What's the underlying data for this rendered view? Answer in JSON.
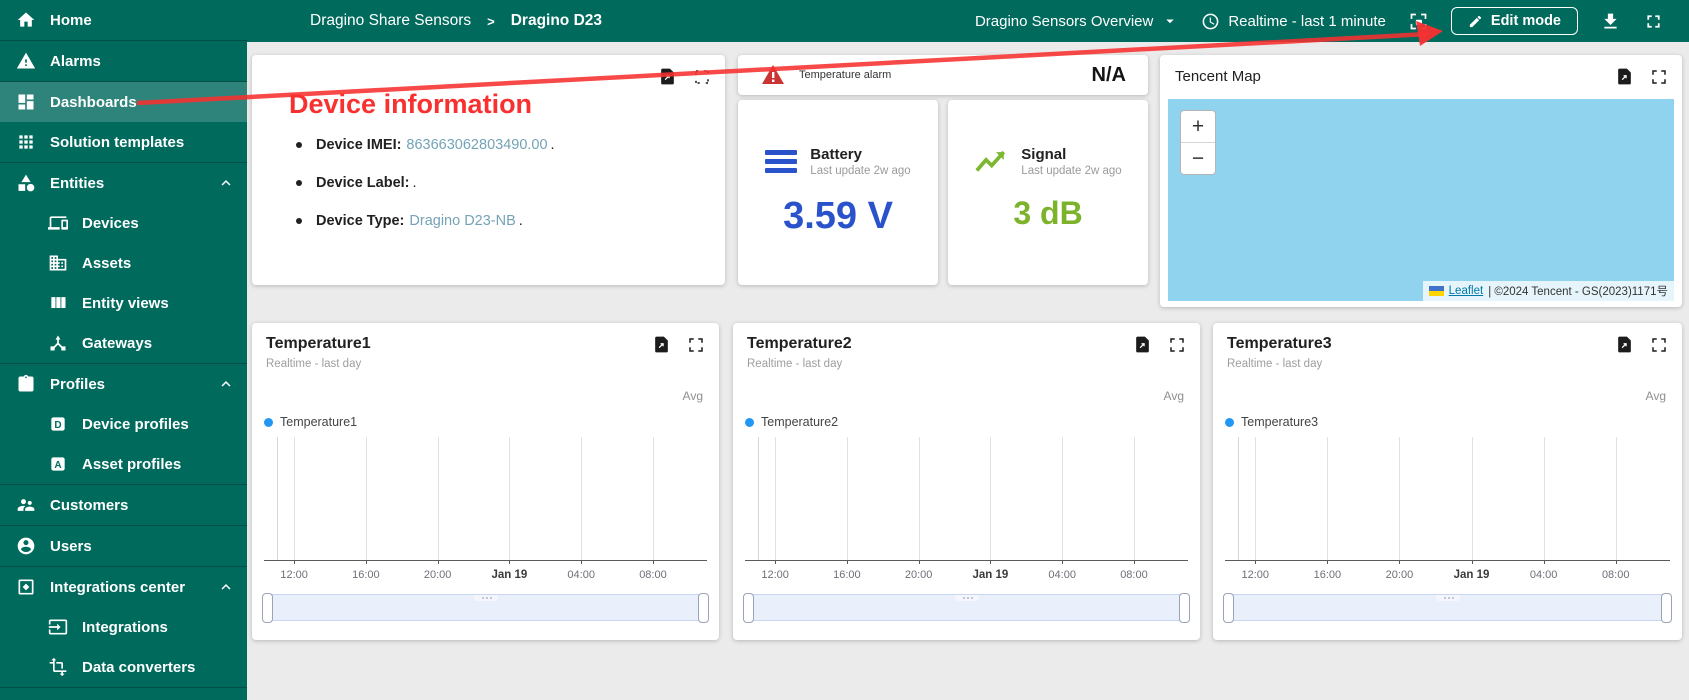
{
  "topbar": {
    "breadcrumb": {
      "parent": "Dragino Share Sensors",
      "separator": ">",
      "current": "Dragino D23"
    },
    "dashboard_select": "Dragino Sensors Overview",
    "timewindow": "Realtime - last 1 minute",
    "edit_button": "Edit mode"
  },
  "sidebar": {
    "items": [
      {
        "label": "Home",
        "icon": "home"
      },
      {
        "divider": true
      },
      {
        "label": "Alarms",
        "icon": "warning"
      },
      {
        "divider": true
      },
      {
        "label": "Dashboards",
        "icon": "dashboard",
        "selected": true
      },
      {
        "label": "Solution templates",
        "icon": "apps"
      },
      {
        "divider": true
      },
      {
        "label": "Entities",
        "icon": "category",
        "chevron": "up"
      },
      {
        "label": "Devices",
        "icon": "devices",
        "sub": true
      },
      {
        "label": "Assets",
        "icon": "domain",
        "sub": true
      },
      {
        "label": "Entity views",
        "icon": "columns",
        "sub": true
      },
      {
        "label": "Gateways",
        "icon": "hub",
        "sub": true
      },
      {
        "divider": true
      },
      {
        "label": "Profiles",
        "icon": "assignment",
        "chevron": "up"
      },
      {
        "label": "Device profiles",
        "icon": "letter-d",
        "sub": true
      },
      {
        "label": "Asset profiles",
        "icon": "letter-a",
        "sub": true
      },
      {
        "divider": true
      },
      {
        "label": "Customers",
        "icon": "people"
      },
      {
        "divider": true
      },
      {
        "label": "Users",
        "icon": "person"
      },
      {
        "divider": true
      },
      {
        "label": "Integrations center",
        "icon": "integration",
        "chevron": "up"
      },
      {
        "label": "Integrations",
        "icon": "input",
        "sub": true
      },
      {
        "label": "Data converters",
        "icon": "transform",
        "sub": true
      },
      {
        "divider": true
      }
    ]
  },
  "annotation": {
    "text": "Device information",
    "color": "#F83030"
  },
  "widgets": {
    "device_info": {
      "rows": [
        {
          "label": "Device IMEI:",
          "value": "863663062803490.00",
          "suffix": "."
        },
        {
          "label": "Device Label:",
          "value": "",
          "suffix": "."
        },
        {
          "label": "Device Type:",
          "value": "Dragino D23-NB",
          "suffix": "."
        }
      ]
    },
    "alarm": {
      "title": "Temperature alarm",
      "value": "N/A"
    },
    "battery": {
      "title": "Battery",
      "subtitle": "Last update 2w ago",
      "value": "3.59 V",
      "color": "#2A52CB"
    },
    "signal": {
      "title": "Signal",
      "subtitle": "Last update 2w ago",
      "value": "3 dB",
      "color": "#7CB32B"
    },
    "map": {
      "title": "Tencent Map",
      "zoom_in": "+",
      "zoom_out": "−",
      "attribution_leaflet": "Leaflet",
      "attribution_text": "| ©2024 Tencent - GS(2023)1171号",
      "water_color": "#8FD3EE"
    },
    "charts": [
      {
        "title": "Temperature1",
        "subtitle": "Realtime - last day",
        "aggregation": "Avg",
        "legend": "Temperature1",
        "legend_color": "#2196F3",
        "x_ticks": [
          "12:00",
          "16:00",
          "20:00",
          "Jan 19",
          "04:00",
          "08:00"
        ],
        "series_values": []
      },
      {
        "title": "Temperature2",
        "subtitle": "Realtime - last day",
        "aggregation": "Avg",
        "legend": "Temperature2",
        "legend_color": "#2196F3",
        "x_ticks": [
          "12:00",
          "16:00",
          "20:00",
          "Jan 19",
          "04:00",
          "08:00"
        ],
        "series_values": []
      },
      {
        "title": "Temperature3",
        "subtitle": "Realtime - last day",
        "aggregation": "Avg",
        "legend": "Temperature3",
        "legend_color": "#2196F3",
        "x_ticks": [
          "12:00",
          "16:00",
          "20:00",
          "Jan 19",
          "04:00",
          "08:00"
        ],
        "series_values": []
      }
    ]
  },
  "colors": {
    "accent_teal": "#006A5D",
    "selected_overlay": "rgba(255,255,255,0.18)",
    "link_value": "#74a3b6"
  }
}
